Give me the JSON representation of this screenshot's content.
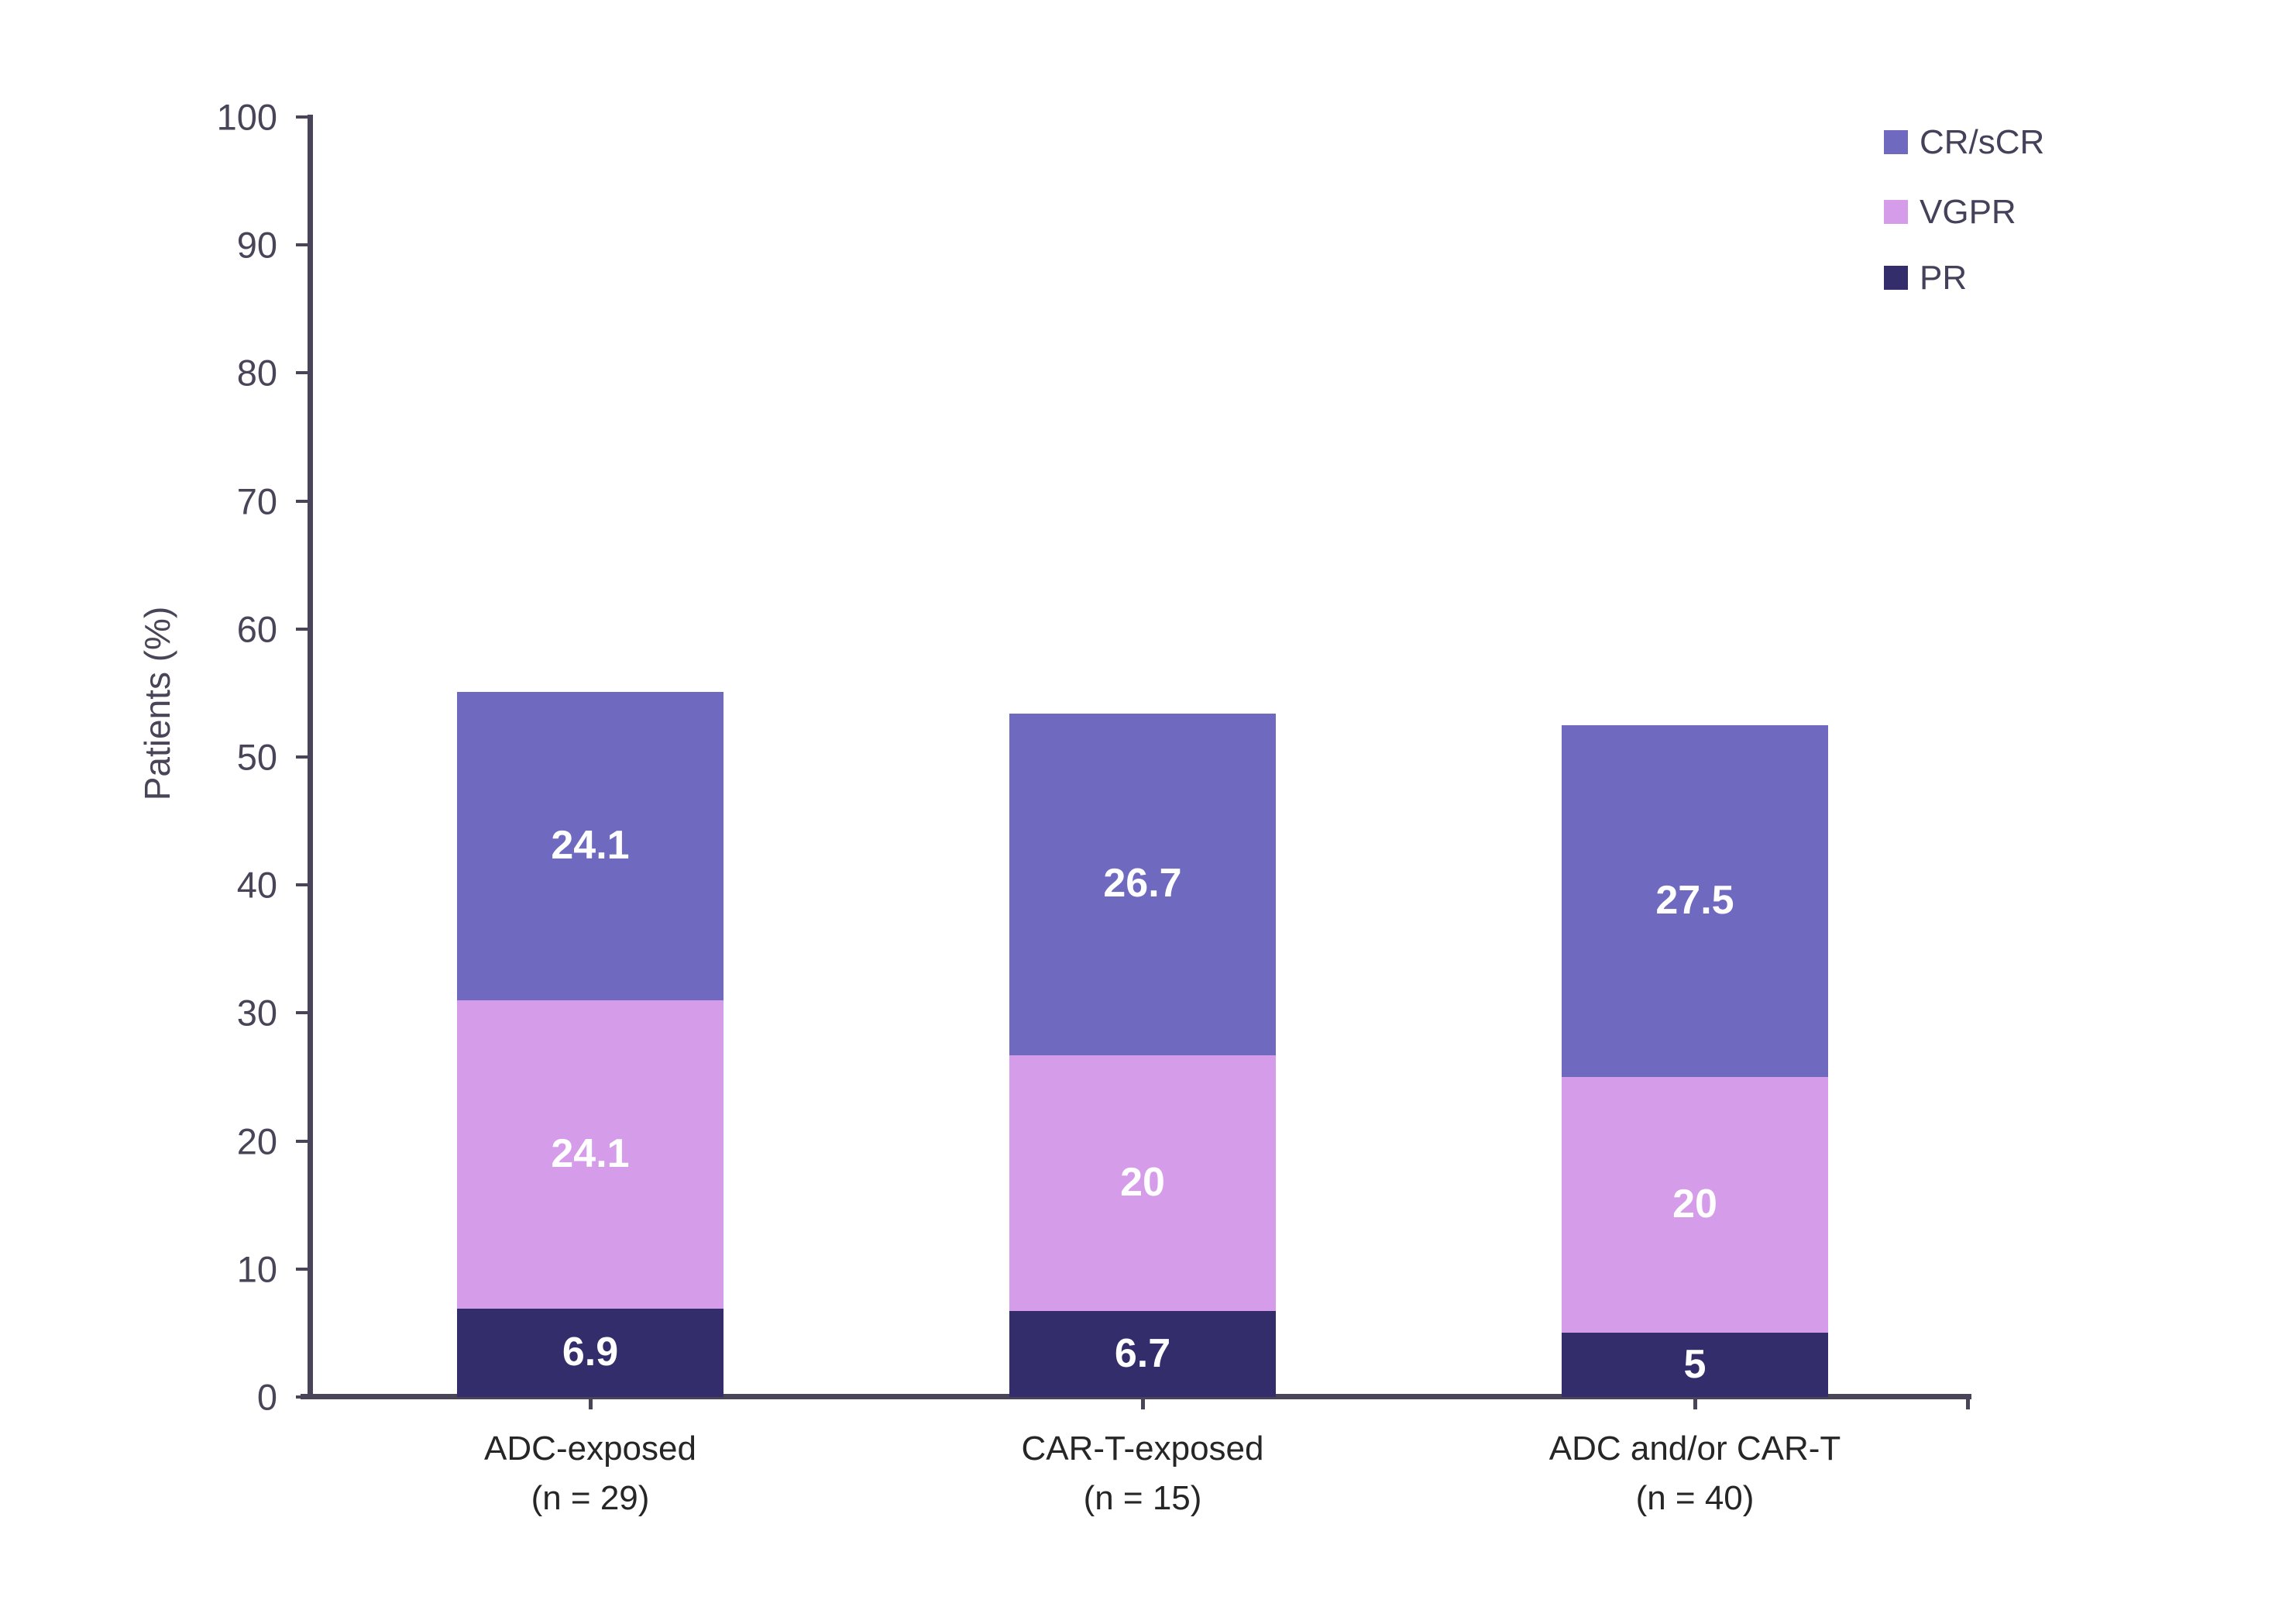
{
  "chart_data": {
    "type": "bar",
    "stacked": true,
    "title": "",
    "xlabel": "",
    "ylabel": "Patients (%)",
    "ylim": [
      0,
      100
    ],
    "yticks": [
      0,
      10,
      20,
      30,
      40,
      50,
      60,
      70,
      80,
      90,
      100
    ],
    "grid": false,
    "categories": [
      "ADC-exposed",
      "CAR-T-exposed",
      "ADC and/or CAR-T"
    ],
    "category_sublabels": [
      "(n = 29)",
      "(n = 15)",
      "(n = 40)"
    ],
    "series": [
      {
        "name": "PR",
        "color": "#332E6B",
        "values": [
          6.9,
          6.7,
          5
        ],
        "labels": [
          "6.9",
          "6.7",
          "5"
        ]
      },
      {
        "name": "VGPR",
        "color": "#D59CEA",
        "values": [
          24.1,
          20,
          20
        ],
        "labels": [
          "24.1",
          "20",
          "20"
        ]
      },
      {
        "name": "CR/sCR",
        "color": "#6F6AC0",
        "values": [
          24.1,
          26.7,
          27.5
        ],
        "labels": [
          "24.1",
          "26.7",
          "27.5"
        ]
      }
    ],
    "legend": {
      "position": "top-right",
      "order": [
        "CR/sCR",
        "VGPR",
        "PR"
      ]
    },
    "colors": {
      "axis": "#4A4458",
      "tick_label": "#4A4458",
      "category_label": "#262626",
      "value_label": "#FFFFFF",
      "background": "#FFFFFF"
    }
  }
}
